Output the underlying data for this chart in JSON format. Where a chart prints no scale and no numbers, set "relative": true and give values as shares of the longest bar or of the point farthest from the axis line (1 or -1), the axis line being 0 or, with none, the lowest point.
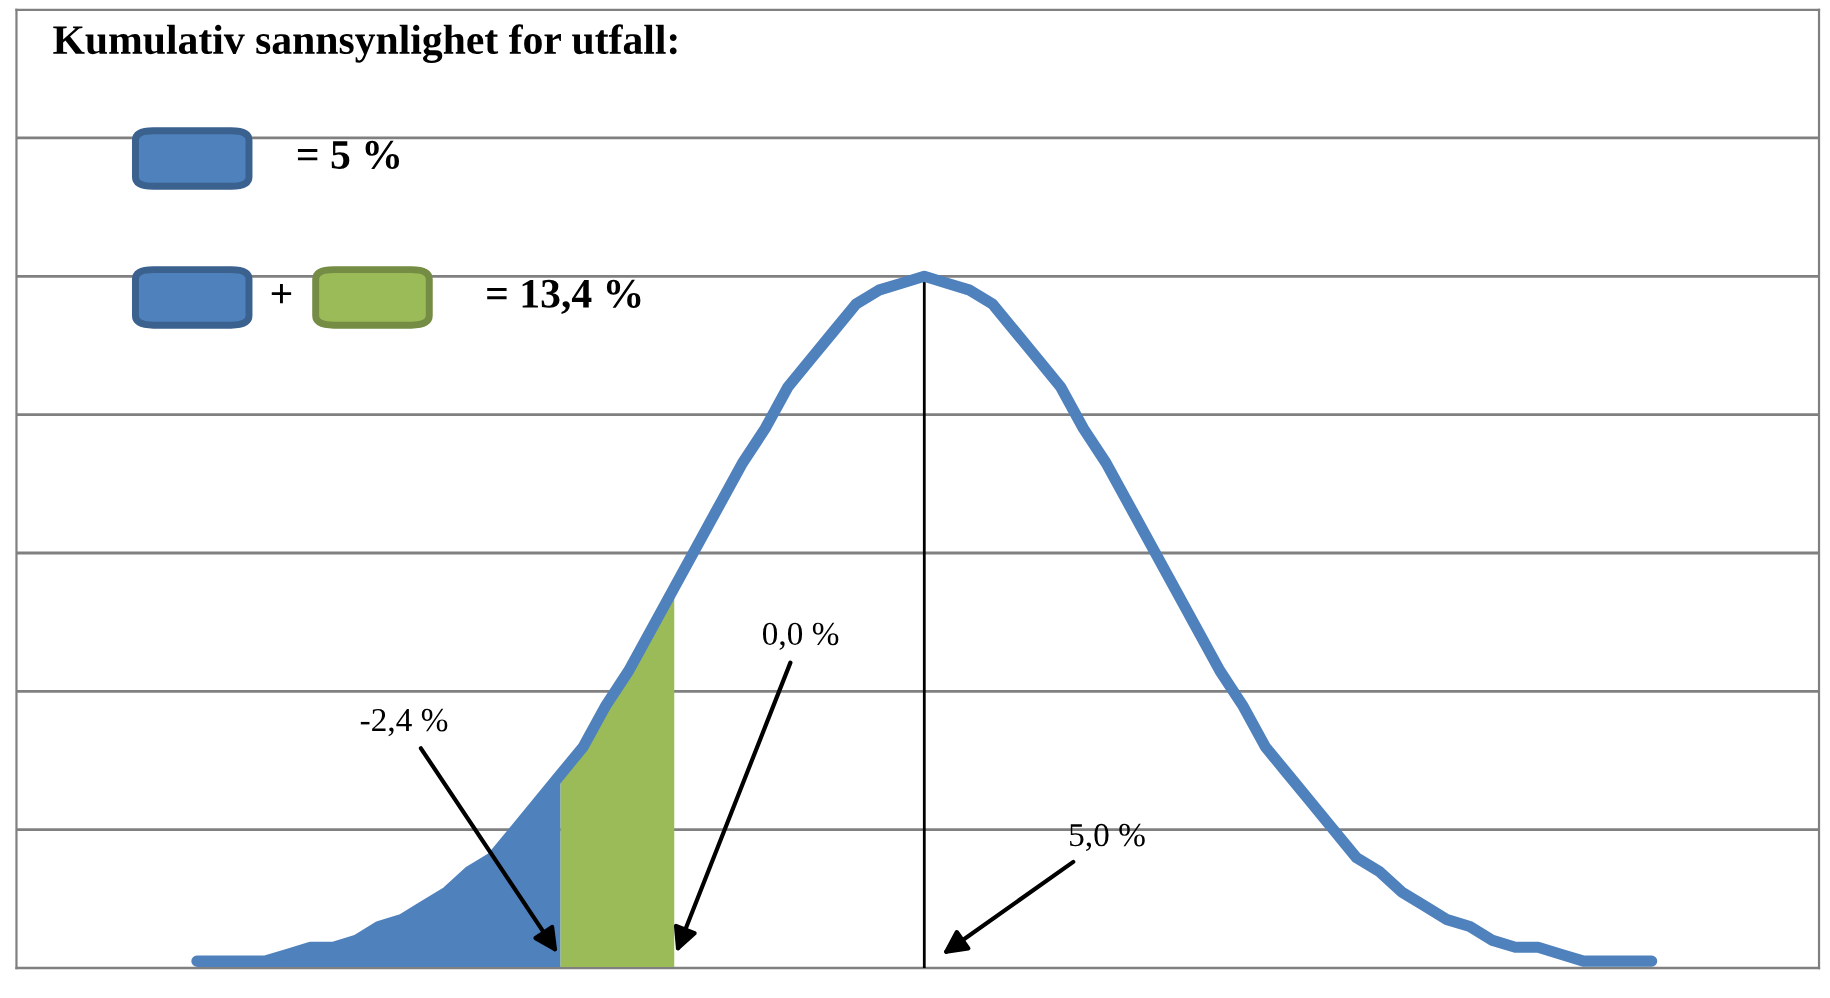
{
  "chart_data": {
    "type": "line",
    "title": "Kumulativ sannsynlighet for utfall:",
    "relative": true,
    "grid": "y",
    "categories": [
      null,
      null,
      null,
      null,
      null,
      null,
      null,
      null,
      null,
      null,
      null,
      null,
      null,
      null,
      null,
      null,
      null,
      null,
      null,
      null,
      null,
      null,
      null,
      null,
      null,
      null,
      null,
      null,
      null,
      null,
      null,
      null,
      null,
      null,
      null,
      null,
      null,
      null,
      null,
      null,
      null,
      null,
      null,
      null,
      null,
      null,
      null,
      null,
      null,
      null,
      null,
      null,
      null,
      null,
      null,
      null,
      null,
      null,
      null,
      null,
      null,
      null,
      null,
      null,
      null
    ],
    "series": [
      {
        "color": "#4f81bd",
        "values": [
          0.01,
          0.01,
          0.01,
          0.01,
          0.02,
          0.03,
          0.03,
          0.04,
          0.06,
          0.07,
          0.09,
          0.11,
          0.14,
          0.16,
          0.2,
          0.24,
          0.28,
          0.32,
          0.38,
          0.43,
          0.49,
          0.55,
          0.61,
          0.67,
          0.73,
          0.78,
          0.84,
          0.88,
          0.92,
          0.96,
          0.98,
          0.99,
          1.0,
          0.99,
          0.98,
          0.96,
          0.92,
          0.88,
          0.84,
          0.78,
          0.73,
          0.67,
          0.61,
          0.55,
          0.49,
          0.43,
          0.38,
          0.32,
          0.28,
          0.24,
          0.2,
          0.16,
          0.14,
          0.11,
          0.09,
          0.07,
          0.06,
          0.04,
          0.03,
          0.03,
          0.02,
          0.01,
          0.01,
          0.01,
          0.01
        ]
      },
      {
        "type": "area",
        "color": "#4f81bd",
        "values": [
          0.01,
          0.01,
          0.01,
          0.01,
          0.02,
          0.03,
          0.03,
          0.04,
          0.06,
          0.07,
          0.09,
          0.11,
          0.14,
          0.16,
          0.2,
          0.24,
          0.28,
          null,
          null,
          null,
          null,
          null,
          null,
          null,
          null,
          null,
          null,
          null,
          null,
          null,
          null,
          null,
          null,
          null,
          null,
          null,
          null,
          null,
          null,
          null,
          null,
          null,
          null,
          null,
          null,
          null,
          null,
          null,
          null,
          null,
          null,
          null,
          null,
          null,
          null,
          null,
          null,
          null,
          null,
          null,
          null,
          null,
          null,
          null,
          null
        ]
      },
      {
        "type": "area",
        "color": "#9bbb59",
        "values": [
          null,
          null,
          null,
          null,
          null,
          null,
          null,
          null,
          null,
          null,
          null,
          null,
          null,
          null,
          null,
          null,
          0.28,
          0.32,
          0.38,
          0.43,
          0.49,
          0.55,
          null,
          null,
          null,
          null,
          null,
          null,
          null,
          null,
          null,
          null,
          null,
          null,
          null,
          null,
          null,
          null,
          null,
          null,
          null,
          null,
          null,
          null,
          null,
          null,
          null,
          null,
          null,
          null,
          null,
          null,
          null,
          null,
          null,
          null,
          null,
          null,
          null,
          null,
          null,
          null,
          null,
          null,
          null
        ]
      }
    ],
    "annotations": [
      "= 5 %",
      "+",
      "= 13,4 %",
      "-2,4 %",
      "0,0 %",
      "5,0 %"
    ]
  }
}
